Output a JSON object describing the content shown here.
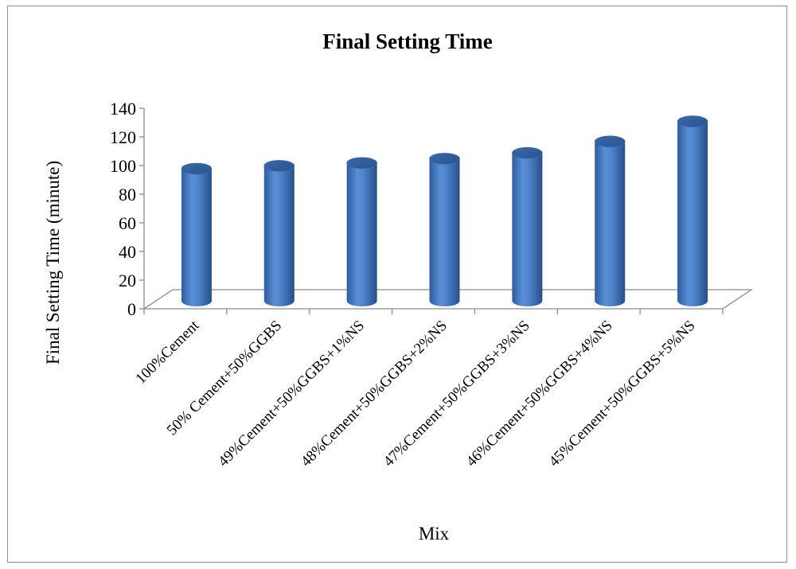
{
  "chart_data": {
    "type": "bar",
    "style": "3d-cylinder",
    "title": "Final Setting Time",
    "xlabel": "Mix",
    "ylabel": "Final Setting Time (minute)",
    "ylim": [
      0,
      140
    ],
    "yticks": [
      "0",
      "20",
      "40",
      "60",
      "80",
      "100",
      "120",
      "140"
    ],
    "grid": false,
    "legend": "none",
    "bar_color": "#4a7ec8",
    "categories": [
      "100%Cement",
      "50% Cement+50%GGBS",
      "49%Cement+50%GGBS+1%NS",
      "48%Cement+50%GGBS+2%NS",
      "47%Cement+50%GGBS+3%NS",
      "46%Cement+50%GGBS+4%NS",
      "45%Cement+50%GGBS+5%NS"
    ],
    "values": [
      90,
      92,
      94,
      97,
      101,
      109,
      123
    ]
  }
}
